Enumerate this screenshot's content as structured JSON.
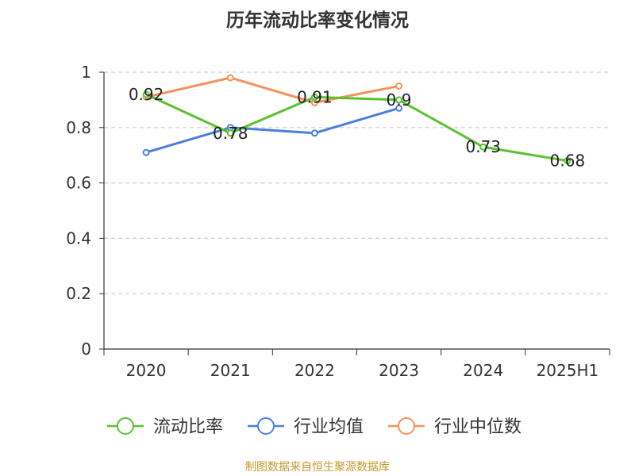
{
  "chart_data": {
    "type": "line",
    "title": "历年流动比率变化情况",
    "categories": [
      "2020",
      "2021",
      "2022",
      "2023",
      "2024",
      "2025H1"
    ],
    "ylim": [
      0,
      1
    ],
    "yticks": [
      "0",
      "0.2",
      "0.4",
      "0.6",
      "0.8",
      "1"
    ],
    "grid": true,
    "legend_position": "bottom",
    "series": [
      {
        "name": "流动比率",
        "color": "#5ac12e",
        "values": [
          0.92,
          0.78,
          0.91,
          0.9,
          0.73,
          0.68
        ],
        "labels": [
          "0.92",
          "0.78",
          "0.91",
          "0.9",
          "0.73",
          "0.68"
        ]
      },
      {
        "name": "行业均值",
        "color": "#4a7fdc",
        "values": [
          0.71,
          0.8,
          0.78,
          0.87,
          null,
          null
        ]
      },
      {
        "name": "行业中位数",
        "color": "#f4925a",
        "values": [
          0.91,
          0.98,
          0.89,
          0.95,
          null,
          null
        ]
      }
    ]
  },
  "footer": {
    "source": "制图数据来自恒生聚源数据库"
  }
}
